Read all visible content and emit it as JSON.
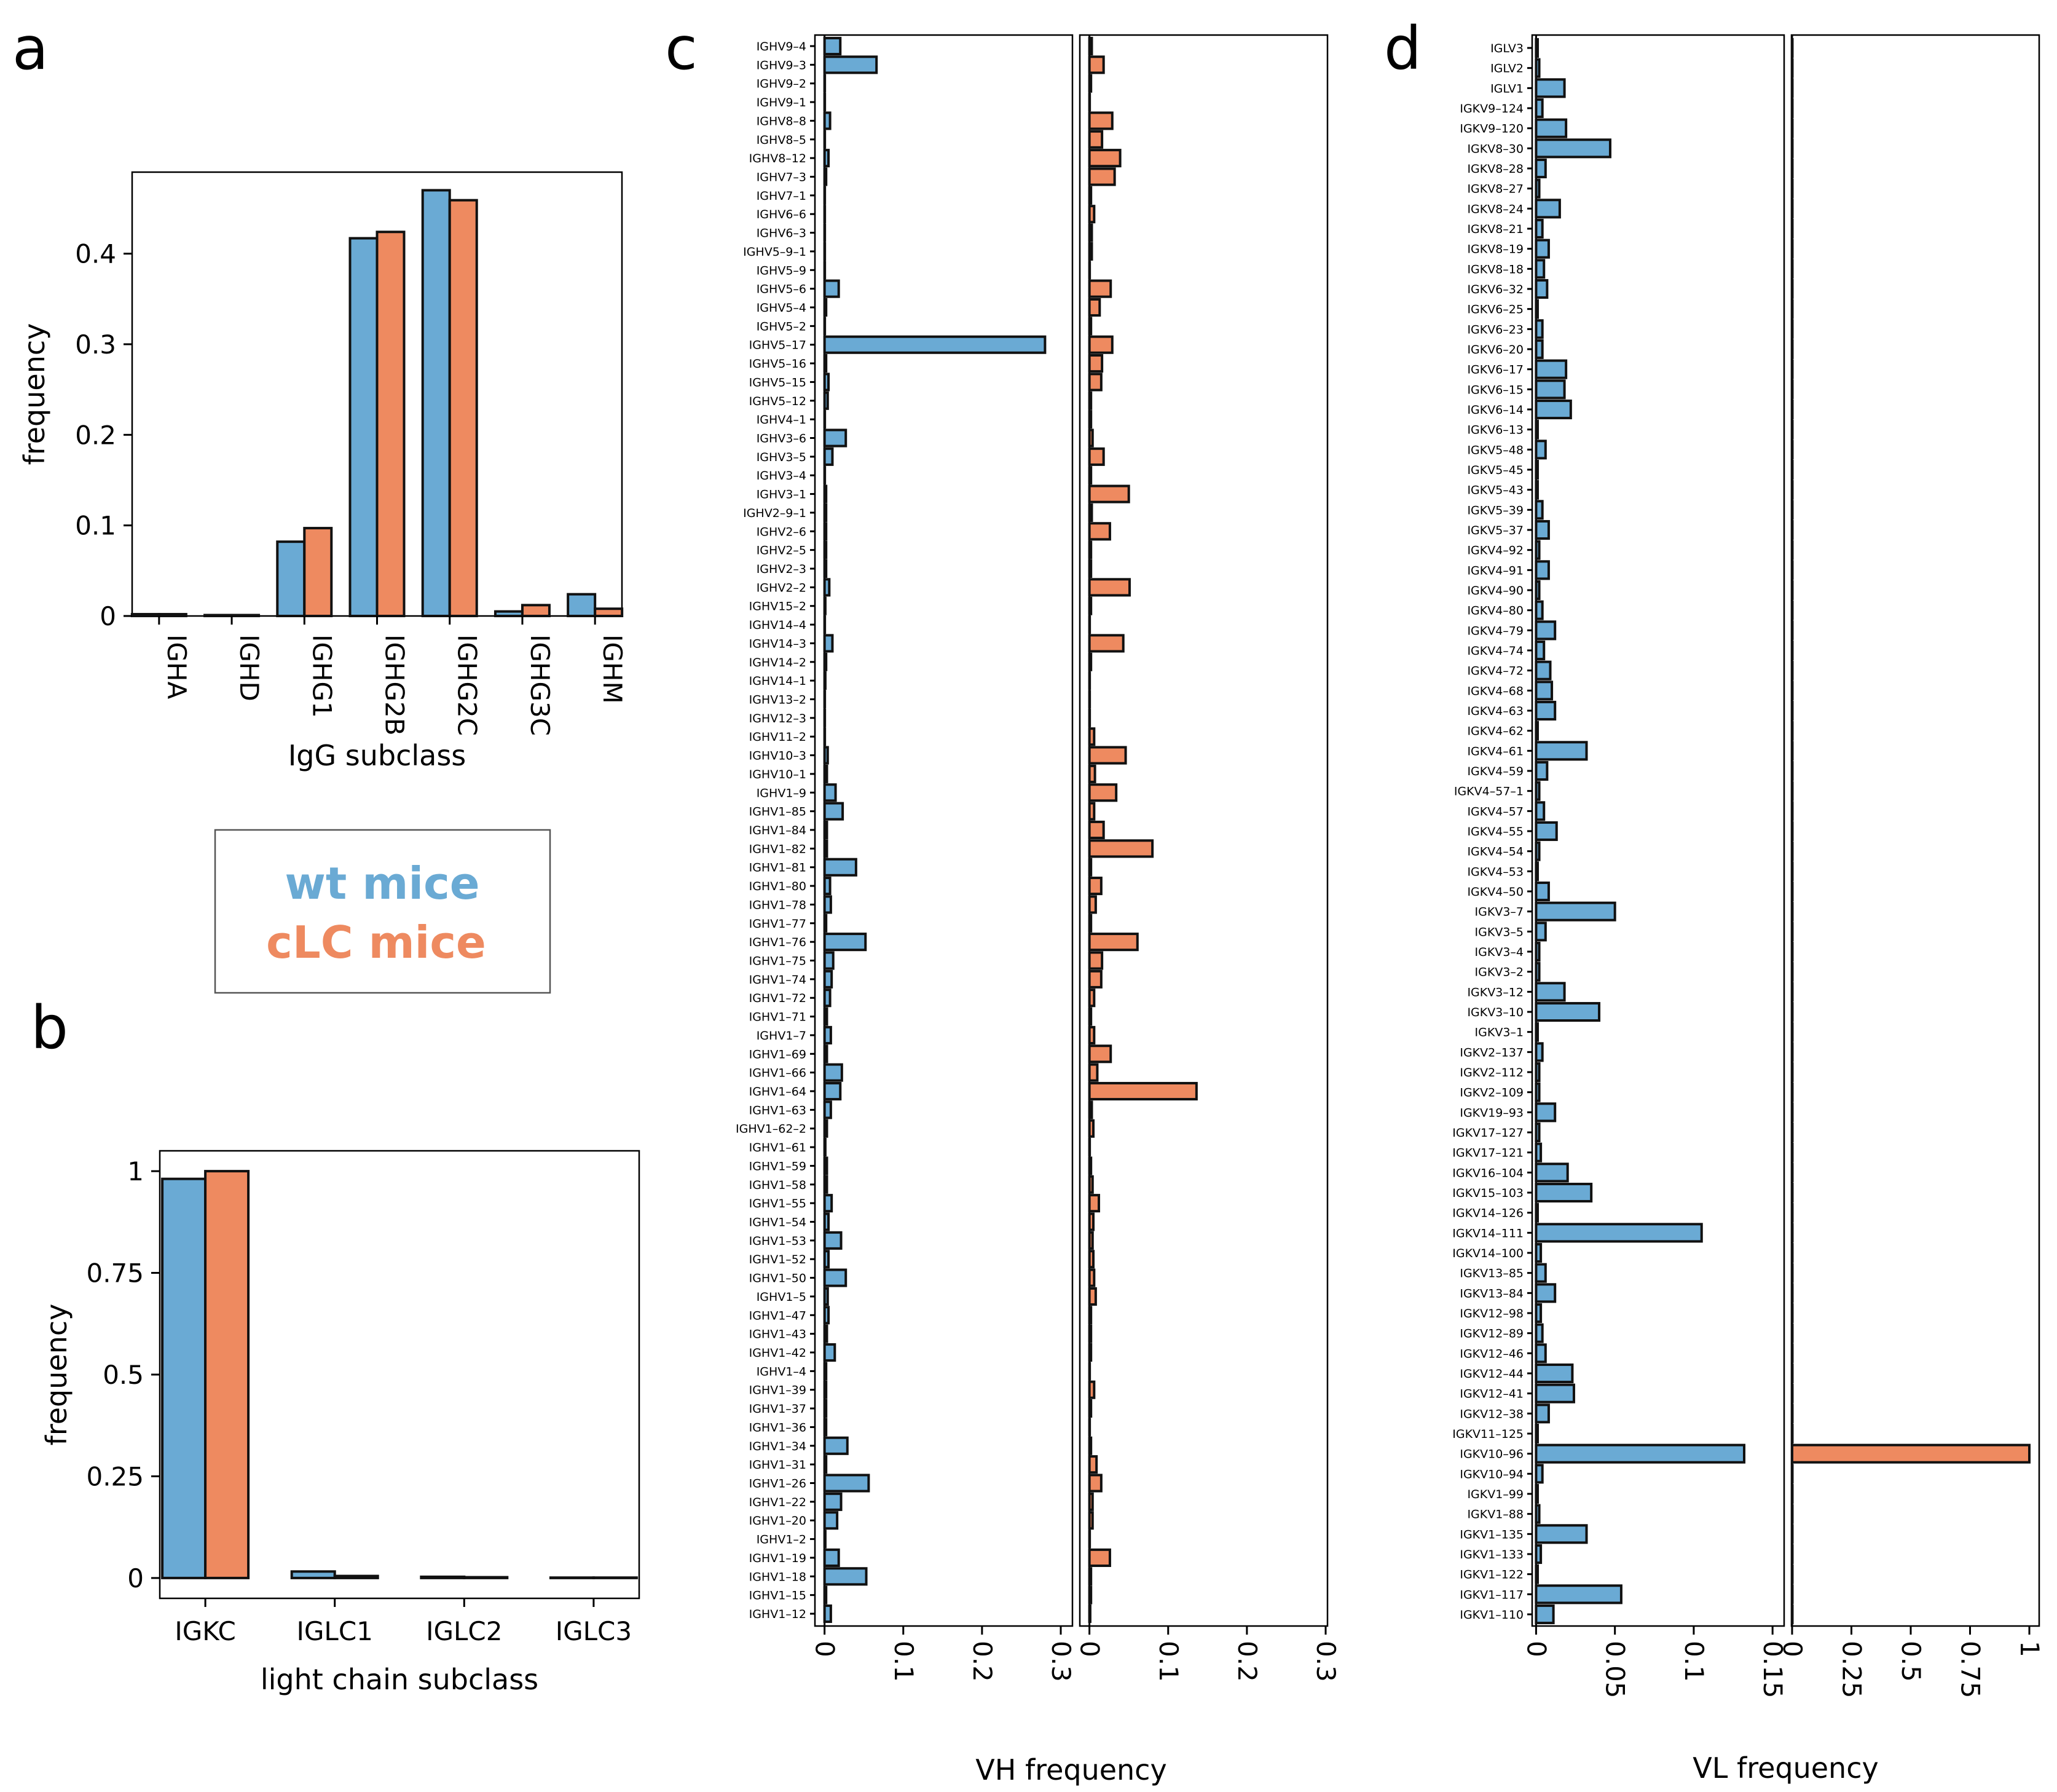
{
  "colors": {
    "wt": "#6aaad4",
    "clc": "#ee8a60",
    "edge": "#111111"
  },
  "panels": {
    "a": "a",
    "b": "b",
    "c": "c",
    "d": "d"
  },
  "legend": {
    "wt": "wt mice",
    "clc": "cLC mice"
  },
  "chart_data": [
    {
      "id": "a",
      "type": "bar",
      "categories": [
        "IGHA",
        "IGHD",
        "IGHG1",
        "IGHG2B",
        "IGHG2C",
        "IGHG3C",
        "IGHM"
      ],
      "series": [
        {
          "name": "wt mice",
          "values": [
            0.002,
            0.001,
            0.082,
            0.417,
            0.47,
            0.005,
            0.024
          ]
        },
        {
          "name": "cLC mice",
          "values": [
            0.002,
            0.001,
            0.097,
            0.424,
            0.459,
            0.012,
            0.008
          ]
        }
      ],
      "xlabel": "IgG subclass",
      "ylabel": "frequency",
      "ylim": [
        0,
        0.49
      ],
      "yticks": [
        0,
        0.1,
        0.2,
        0.3,
        0.4
      ],
      "ytick_labels": [
        "0",
        "0.1",
        "0.2",
        "0.3",
        "0.4"
      ]
    },
    {
      "id": "b",
      "type": "bar",
      "categories": [
        "IGKC",
        "IGLC1",
        "IGLC2",
        "IGLC3"
      ],
      "series": [
        {
          "name": "wt mice",
          "values": [
            0.981,
            0.016,
            0.003,
            0.001
          ]
        },
        {
          "name": "cLC mice",
          "values": [
            1.0,
            0.005,
            0.002,
            0.001
          ]
        }
      ],
      "xlabel": "light chain subclass",
      "ylabel": "frequency",
      "ylim": [
        -0.05,
        1.05
      ],
      "yticks": [
        0,
        0.25,
        0.5,
        0.75,
        1
      ],
      "ytick_labels": [
        "0",
        "0.25",
        "0.5",
        "0.75",
        "1"
      ]
    },
    {
      "id": "c",
      "type": "bar",
      "orientation": "horizontal",
      "categories": [
        "IGHV9-4",
        "IGHV9-3",
        "IGHV9-2",
        "IGHV9-1",
        "IGHV8-8",
        "IGHV8-5",
        "IGHV8-12",
        "IGHV7-3",
        "IGHV7-1",
        "IGHV6-6",
        "IGHV6-3",
        "IGHV5-9-1",
        "IGHV5-9",
        "IGHV5-6",
        "IGHV5-4",
        "IGHV5-2",
        "IGHV5-17",
        "IGHV5-16",
        "IGHV5-15",
        "IGHV5-12",
        "IGHV4-1",
        "IGHV3-6",
        "IGHV3-5",
        "IGHV3-4",
        "IGHV3-1",
        "IGHV2-9-1",
        "IGHV2-6",
        "IGHV2-5",
        "IGHV2-3",
        "IGHV2-2",
        "IGHV15-2",
        "IGHV14-4",
        "IGHV14-3",
        "IGHV14-2",
        "IGHV14-1",
        "IGHV13-2",
        "IGHV12-3",
        "IGHV11-2",
        "IGHV10-3",
        "IGHV10-1",
        "IGHV1-9",
        "IGHV1-85",
        "IGHV1-84",
        "IGHV1-82",
        "IGHV1-81",
        "IGHV1-80",
        "IGHV1-78",
        "IGHV1-77",
        "IGHV1-76",
        "IGHV1-75",
        "IGHV1-74",
        "IGHV1-72",
        "IGHV1-71",
        "IGHV1-7",
        "IGHV1-69",
        "IGHV1-66",
        "IGHV1-64",
        "IGHV1-63",
        "IGHV1-62-2",
        "IGHV1-61",
        "IGHV1-59",
        "IGHV1-58",
        "IGHV1-55",
        "IGHV1-54",
        "IGHV1-53",
        "IGHV1-52",
        "IGHV1-50",
        "IGHV1-5",
        "IGHV1-47",
        "IGHV1-43",
        "IGHV1-42",
        "IGHV1-4",
        "IGHV1-39",
        "IGHV1-37",
        "IGHV1-36",
        "IGHV1-34",
        "IGHV1-31",
        "IGHV1-26",
        "IGHV1-22",
        "IGHV1-20",
        "IGHV1-2",
        "IGHV1-19",
        "IGHV1-18",
        "IGHV1-15",
        "IGHV1-12"
      ],
      "series": [
        {
          "name": "wt mice",
          "values": [
            0.02,
            0.066,
            0,
            0,
            0.007,
            0,
            0.005,
            0.002,
            0,
            0,
            0,
            0,
            0,
            0.018,
            0.002,
            0,
            0.28,
            0.002,
            0.005,
            0.004,
            0,
            0.027,
            0.01,
            0,
            0.002,
            0.002,
            0.002,
            0.002,
            0.002,
            0.006,
            0.001,
            0,
            0.01,
            0.002,
            0.001,
            0,
            0,
            0,
            0.004,
            0.003,
            0.014,
            0.023,
            0.003,
            0.003,
            0.04,
            0.007,
            0.008,
            0.002,
            0.052,
            0.011,
            0.009,
            0.007,
            0.003,
            0.008,
            0.003,
            0.022,
            0.02,
            0.008,
            0.003,
            0.001,
            0.003,
            0.003,
            0.009,
            0.005,
            0.021,
            0.005,
            0.027,
            0.004,
            0.005,
            0.003,
            0.013,
            0.002,
            0.002,
            0.002,
            0.002,
            0.029,
            0.002,
            0.056,
            0.021,
            0.016,
            0.001,
            0.018,
            0.053,
            0.002,
            0.008
          ]
        },
        {
          "name": "cLC mice",
          "values": [
            0.003,
            0.018,
            0.002,
            0,
            0.029,
            0.016,
            0.039,
            0.032,
            0.002,
            0.006,
            0.003,
            0.003,
            0,
            0.027,
            0.013,
            0.002,
            0.029,
            0.016,
            0.015,
            0.002,
            0.002,
            0.004,
            0.018,
            0.002,
            0.05,
            0.003,
            0.026,
            0.002,
            0.002,
            0.051,
            0.002,
            0,
            0.043,
            0.002,
            0,
            0,
            0,
            0.006,
            0.046,
            0.007,
            0.034,
            0.006,
            0.018,
            0.08,
            0.002,
            0.015,
            0.008,
            0.002,
            0.061,
            0.016,
            0.015,
            0.006,
            0.002,
            0.006,
            0.027,
            0.01,
            0.136,
            0.003,
            0.005,
            0,
            0.002,
            0.004,
            0.012,
            0.005,
            0.004,
            0.005,
            0.006,
            0.008,
            0.002,
            0.002,
            0.002,
            0,
            0.006,
            0.002,
            0,
            0.002,
            0.009,
            0.015,
            0.004,
            0.004,
            0,
            0.026,
            0.002,
            0.002,
            0.001
          ]
        }
      ],
      "xlabel": "VH frequency",
      "xlim": [
        -0.0122,
        0.3
      ],
      "xticks": [
        0,
        0.1,
        0.2,
        0.3
      ],
      "xtick_labels": [
        "0",
        "0.1",
        "0.2",
        "0.3"
      ]
    },
    {
      "id": "d",
      "type": "bar",
      "orientation": "horizontal",
      "categories": [
        "IGLV3",
        "IGLV2",
        "IGLV1",
        "IGKV9-124",
        "IGKV9-120",
        "IGKV8-30",
        "IGKV8-28",
        "IGKV8-27",
        "IGKV8-24",
        "IGKV8-21",
        "IGKV8-19",
        "IGKV8-18",
        "IGKV6-32",
        "IGKV6-25",
        "IGKV6-23",
        "IGKV6-20",
        "IGKV6-17",
        "IGKV6-15",
        "IGKV6-14",
        "IGKV6-13",
        "IGKV5-48",
        "IGKV5-45",
        "IGKV5-43",
        "IGKV5-39",
        "IGKV5-37",
        "IGKV4-92",
        "IGKV4-91",
        "IGKV4-90",
        "IGKV4-80",
        "IGKV4-79",
        "IGKV4-74",
        "IGKV4-72",
        "IGKV4-68",
        "IGKV4-63",
        "IGKV4-62",
        "IGKV4-61",
        "IGKV4-59",
        "IGKV4-57-1",
        "IGKV4-57",
        "IGKV4-55",
        "IGKV4-54",
        "IGKV4-53",
        "IGKV4-50",
        "IGKV3-7",
        "IGKV3-5",
        "IGKV3-4",
        "IGKV3-2",
        "IGKV3-12",
        "IGKV3-10",
        "IGKV3-1",
        "IGKV2-137",
        "IGKV2-112",
        "IGKV2-109",
        "IGKV19-93",
        "IGKV17-127",
        "IGKV17-121",
        "IGKV16-104",
        "IGKV15-103",
        "IGKV14-126",
        "IGKV14-111",
        "IGKV14-100",
        "IGKV13-85",
        "IGKV13-84",
        "IGKV12-98",
        "IGKV12-89",
        "IGKV12-46",
        "IGKV12-44",
        "IGKV12-41",
        "IGKV12-38",
        "IGKV11-125",
        "IGKV10-96",
        "IGKV10-94",
        "IGKV1-99",
        "IGKV1-88",
        "IGKV1-135",
        "IGKV1-133",
        "IGKV1-122",
        "IGKV1-117",
        "IGKV1-110"
      ],
      "series": [
        {
          "name": "wt mice",
          "values": [
            0.001,
            0.002,
            0.018,
            0.004,
            0.019,
            0.047,
            0.006,
            0.002,
            0.015,
            0.004,
            0.008,
            0.005,
            0.007,
            0.001,
            0.004,
            0.004,
            0.019,
            0.018,
            0.022,
            0.001,
            0.006,
            0.001,
            0.001,
            0.004,
            0.008,
            0.002,
            0.008,
            0.002,
            0.004,
            0.012,
            0.005,
            0.009,
            0.01,
            0.012,
            0.001,
            0.032,
            0.007,
            0.002,
            0.005,
            0.013,
            0.002,
            0.001,
            0.008,
            0.05,
            0.006,
            0.002,
            0.002,
            0.018,
            0.04,
            0.001,
            0.004,
            0.002,
            0.002,
            0.012,
            0.002,
            0.003,
            0.02,
            0.035,
            0.001,
            0.105,
            0.003,
            0.006,
            0.012,
            0.003,
            0.004,
            0.006,
            0.023,
            0.024,
            0.008,
            0.001,
            0.132,
            0.004,
            0.001,
            0.002,
            0.032,
            0.003,
            0.001,
            0.054,
            0.011
          ]
        },
        {
          "name": "cLC mice",
          "values": [
            0,
            0,
            0,
            0,
            0,
            0,
            0,
            0,
            0,
            0,
            0,
            0,
            0,
            0,
            0,
            0,
            0,
            0,
            0,
            0,
            0,
            0,
            0,
            0,
            0,
            0,
            0,
            0,
            0,
            0,
            0,
            0,
            0,
            0,
            0,
            0,
            0,
            0,
            0,
            0,
            0,
            0,
            0,
            0,
            0,
            0,
            0,
            0,
            0,
            0,
            0,
            0,
            0,
            0,
            0,
            0,
            0,
            0,
            0,
            0,
            0,
            0,
            0,
            0,
            0,
            0,
            0,
            0,
            0,
            0,
            1,
            0,
            0,
            0,
            0,
            0,
            0,
            0,
            0
          ]
        }
      ],
      "xlabel": "VL frequency",
      "xlim_wt": [
        -0.0025,
        0.155
      ],
      "xticks_wt": [
        0,
        0.05,
        0.1,
        0.15
      ],
      "xtick_labels_wt": [
        "0",
        "0.05",
        "0.1",
        "0.15"
      ],
      "xlim_clc": [
        -0.0025,
        1.0
      ],
      "xticks_clc": [
        0,
        0.25,
        0.5,
        0.75,
        1
      ],
      "xtick_labels_clc": [
        "0",
        "0.25",
        "0.5",
        "0.75",
        "1"
      ]
    }
  ]
}
